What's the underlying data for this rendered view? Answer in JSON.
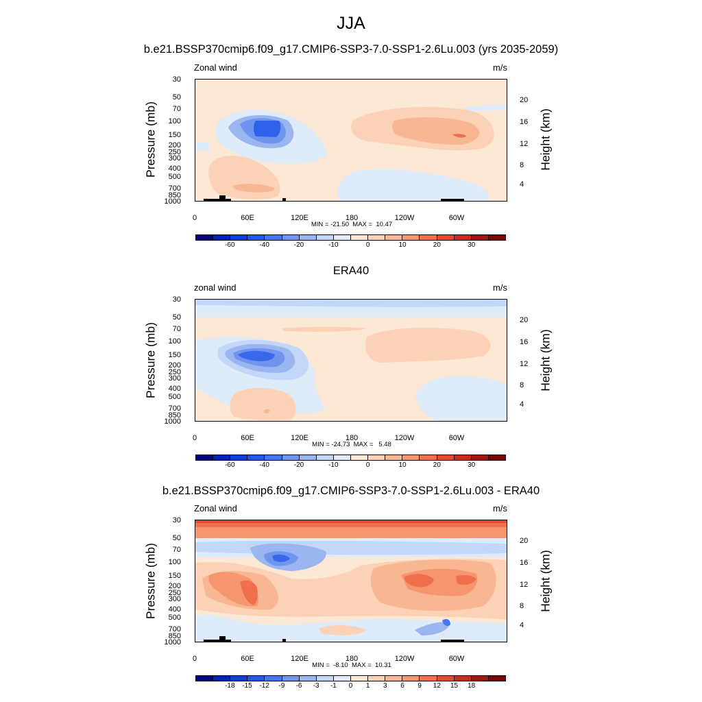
{
  "figure_title": "JJA",
  "chart_data": [
    {
      "type": "heatmap",
      "title": "b.e21.BSSP370cmip6.f09_g17.CMIP6-SSP3-7.0-SSP1-2.6Lu.003 (yrs 2035-2059)",
      "left_label": "Zonal wind",
      "units": "m/s",
      "ylabel": "Pressure (mb)",
      "y2label": "Height (km)",
      "y_ticks": [
        "30",
        "50",
        "70",
        "100",
        "150",
        "200",
        "250",
        "300",
        "400",
        "500",
        "700",
        "850",
        "1000"
      ],
      "y2_ticks": [
        "20",
        "16",
        "12",
        "8",
        "4"
      ],
      "x_ticks": [
        "0",
        "60E",
        "120E",
        "180",
        "120W",
        "60W"
      ],
      "stats": "MIN = -21.50  MAX =  10.47",
      "min": -21.5,
      "max": 10.47,
      "levels": [
        "-60",
        "-40",
        "-20",
        "-10",
        "0",
        "10",
        "20",
        "30"
      ],
      "palette": [
        "#00007f",
        "#0021b5",
        "#0b3fd8",
        "#2258e8",
        "#4477ee",
        "#6f95ee",
        "#9ab5f0",
        "#c2d6f7",
        "#deebfa",
        "#fde8d6",
        "#fbd2b6",
        "#f9b693",
        "#f59670",
        "#f0704d",
        "#e24a2c",
        "#c72b1b",
        "#a11610",
        "#7b0505"
      ]
    },
    {
      "type": "heatmap",
      "title": "ERA40",
      "left_label": "zonal wind",
      "units": "m/s",
      "ylabel": "Pressure (mb)",
      "y2label": "Height (km)",
      "y_ticks": [
        "30",
        "50",
        "70",
        "100",
        "150",
        "200",
        "250",
        "300",
        "400",
        "500",
        "700",
        "850",
        "1000"
      ],
      "y2_ticks": [
        "20",
        "16",
        "12",
        "8",
        "4"
      ],
      "x_ticks": [
        "0",
        "60E",
        "120E",
        "180",
        "120W",
        "60W"
      ],
      "stats": "MIN = -24.73  MAX =   5.48",
      "min": -24.73,
      "max": 5.48,
      "levels": [
        "-60",
        "-40",
        "-20",
        "-10",
        "0",
        "10",
        "20",
        "30"
      ],
      "palette": [
        "#00007f",
        "#0021b5",
        "#0b3fd8",
        "#2258e8",
        "#4477ee",
        "#6f95ee",
        "#9ab5f0",
        "#c2d6f7",
        "#deebfa",
        "#fde8d6",
        "#fbd2b6",
        "#f9b693",
        "#f59670",
        "#f0704d",
        "#e24a2c",
        "#c72b1b",
        "#a11610",
        "#7b0505"
      ]
    },
    {
      "type": "heatmap",
      "title": "b.e21.BSSP370cmip6.f09_g17.CMIP6-SSP3-7.0-SSP1-2.6Lu.003 - ERA40",
      "left_label": "Zonal wind",
      "units": "m/s",
      "ylabel": "Pressure (mb)",
      "y2label": "Height (km)",
      "y_ticks": [
        "30",
        "50",
        "70",
        "100",
        "150",
        "200",
        "250",
        "300",
        "400",
        "500",
        "700",
        "850",
        "1000"
      ],
      "y2_ticks": [
        "20",
        "16",
        "12",
        "8",
        "4"
      ],
      "x_ticks": [
        "0",
        "60E",
        "120E",
        "180",
        "120W",
        "60W"
      ],
      "stats": "MIN =  -8.10  MAX =  10.31",
      "min": -8.1,
      "max": 10.31,
      "levels": [
        "-18",
        "-15",
        "-12",
        "-9",
        "-6",
        "-3",
        "-1",
        "0",
        "1",
        "3",
        "6",
        "9",
        "12",
        "15",
        "18"
      ],
      "palette": [
        "#00007f",
        "#0021b5",
        "#0b3fd8",
        "#2258e8",
        "#4477ee",
        "#6f95ee",
        "#9ab5f0",
        "#c2d6f7",
        "#deebfa",
        "#fde8d6",
        "#fbd2b6",
        "#f9b693",
        "#f59670",
        "#f0704d",
        "#e24a2c",
        "#c72b1b",
        "#a11610",
        "#7b0505"
      ]
    }
  ]
}
